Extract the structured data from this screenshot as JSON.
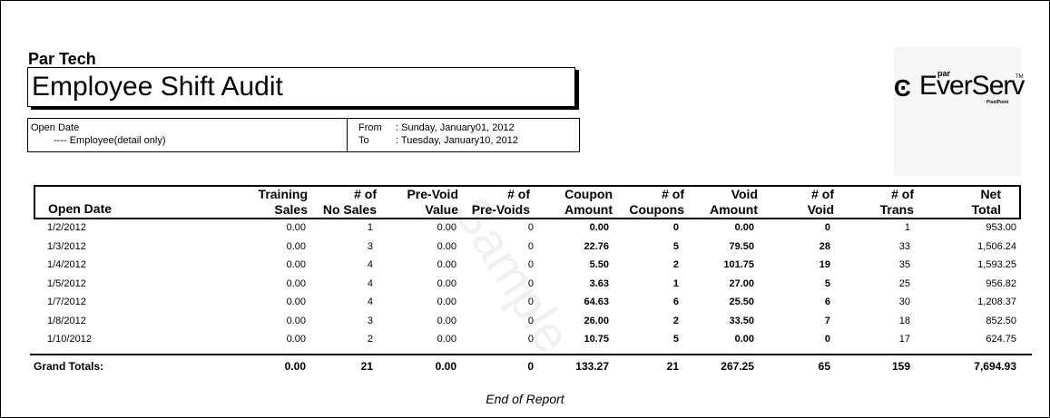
{
  "report": {
    "company": "Par Tech",
    "title": "Employee Shift Audit",
    "end_text": "End of Report",
    "watermark": "Sample"
  },
  "params": {
    "label": "Open Date",
    "sub": "---- Employee(detail only)",
    "from_label": "From",
    "from_value": ": Sunday, January01, 2012",
    "to_label": "To",
    "to_value": ": Tuesday, January10, 2012"
  },
  "logo": {
    "brand": "EverServ",
    "par": "par",
    "tm": "TM",
    "sub": "PixelPoint"
  },
  "columns": [
    {
      "l1": "",
      "l2": "Open Date"
    },
    {
      "l1": "Training",
      "l2": "Sales"
    },
    {
      "l1": "# of",
      "l2": "No Sales"
    },
    {
      "l1": "Pre-Void",
      "l2": "Value"
    },
    {
      "l1": "# of",
      "l2": "Pre-Voids"
    },
    {
      "l1": "Coupon",
      "l2": "Amount"
    },
    {
      "l1": "# of",
      "l2": "Coupons"
    },
    {
      "l1": "Void",
      "l2": "Amount"
    },
    {
      "l1": "# of",
      "l2": "Void"
    },
    {
      "l1": "# of",
      "l2": "Trans"
    },
    {
      "l1": "Net",
      "l2": "Total"
    }
  ],
  "rows": [
    [
      "1/2/2012",
      "0.00",
      "1",
      "0.00",
      "0",
      "0.00",
      "0",
      "0.00",
      "0",
      "1",
      "953.00"
    ],
    [
      "1/3/2012",
      "0.00",
      "3",
      "0.00",
      "0",
      "22.76",
      "5",
      "79.50",
      "28",
      "33",
      "1,506.24"
    ],
    [
      "1/4/2012",
      "0.00",
      "4",
      "0.00",
      "0",
      "5.50",
      "2",
      "101.75",
      "19",
      "35",
      "1,593.25"
    ],
    [
      "1/5/2012",
      "0.00",
      "4",
      "0.00",
      "0",
      "3.63",
      "1",
      "27.00",
      "5",
      "25",
      "956.82"
    ],
    [
      "1/7/2012",
      "0.00",
      "4",
      "0.00",
      "0",
      "64.63",
      "6",
      "25.50",
      "6",
      "30",
      "1,208.37"
    ],
    [
      "1/8/2012",
      "0.00",
      "3",
      "0.00",
      "0",
      "26.00",
      "2",
      "33.50",
      "7",
      "18",
      "852.50"
    ],
    [
      "1/10/2012",
      "0.00",
      "2",
      "0.00",
      "0",
      "10.75",
      "5",
      "0.00",
      "0",
      "17",
      "624.75"
    ]
  ],
  "totals": [
    "Grand Totals:",
    "0.00",
    "21",
    "0.00",
    "0",
    "133.27",
    "21",
    "267.25",
    "65",
    "159",
    "7,694.93"
  ]
}
